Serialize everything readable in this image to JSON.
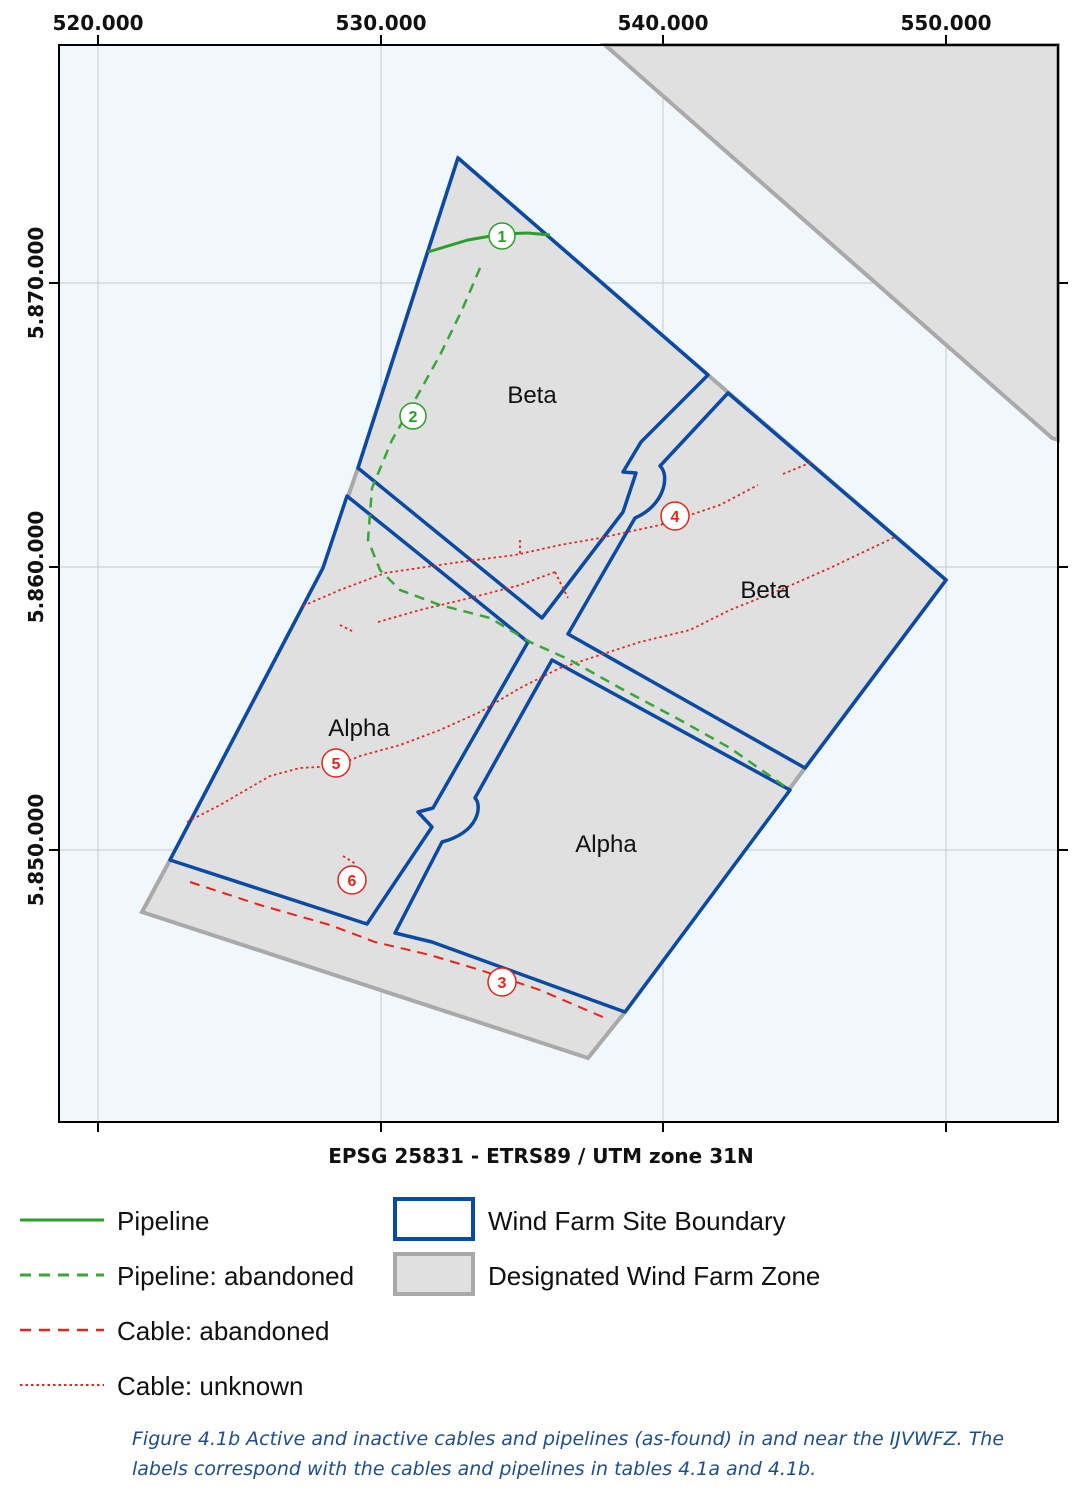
{
  "map": {
    "x_ticks": [
      "520.000",
      "530.000",
      "540.000",
      "550.000"
    ],
    "y_ticks": [
      "5.870.000",
      "5.860.000",
      "5.850.000"
    ],
    "crs_label": "EPSG 25831 - ETRS89 / UTM zone 31N",
    "area_labels": {
      "beta_north": "Beta",
      "beta_east": "Beta",
      "alpha_west": "Alpha",
      "alpha_south": "Alpha"
    },
    "markers": [
      {
        "label": "1",
        "type": "pipeline"
      },
      {
        "label": "2",
        "type": "pipeline"
      },
      {
        "label": "3",
        "type": "cable"
      },
      {
        "label": "4",
        "type": "cable"
      },
      {
        "label": "5",
        "type": "cable"
      },
      {
        "label": "6",
        "type": "cable"
      }
    ]
  },
  "legend": {
    "pipeline": "Pipeline",
    "pipeline_abandoned": "Pipeline: abandoned",
    "cable_abandoned": "Cable: abandoned",
    "cable_unknown": "Cable: unknown",
    "site_boundary": "Wind Farm Site Boundary",
    "designated_zone": "Designated Wind Farm Zone"
  },
  "colors": {
    "sea": "#f0f8fd",
    "zone_fill": "#e0e0e0",
    "zone_border": "#a9a9a9",
    "site_boundary": "#0b4aa2",
    "pipeline": "#2aa02a",
    "pipeline_abandoned": "#3aa53a",
    "cable": "#e8231c",
    "caption": "#1f4e8c"
  },
  "caption": {
    "line1": "Figure 4.1b Active and inactive cables and pipelines (as-found) in and near the IJVWFZ. The",
    "line2": "labels correspond with the cables and pipelines in tables 4.1a and 4.1b."
  }
}
